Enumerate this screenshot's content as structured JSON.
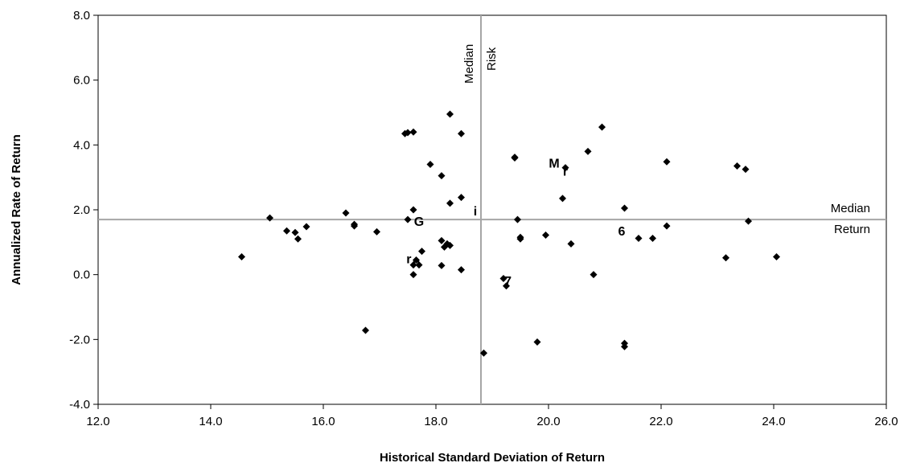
{
  "chart_data": {
    "type": "scatter",
    "title": "",
    "xlabel": "Historical Standard Deviation of Return",
    "ylabel": "Annualized Rate of Return",
    "xlim": [
      12.0,
      26.0
    ],
    "ylim": [
      -4.0,
      8.0
    ],
    "x_ticks": [
      "12.0",
      "14.0",
      "16.0",
      "18.0",
      "20.0",
      "22.0",
      "24.0",
      "26.0"
    ],
    "y_ticks": [
      "-4.0",
      "-2.0",
      "0.0",
      "2.0",
      "4.0",
      "6.0",
      "8.0"
    ],
    "grid": false,
    "marker": "diamond",
    "marker_color": "#000000",
    "reference_line_color": "#a6a6a6",
    "reference_lines": {
      "median_risk": {
        "value": 18.8,
        "label_line1": "Median",
        "label_line2": "Risk"
      },
      "median_return": {
        "value": 1.7,
        "label_line1": "Median",
        "label_line2": "Return"
      }
    },
    "points": [
      {
        "x": 14.55,
        "y": 0.55
      },
      {
        "x": 15.05,
        "y": 1.75
      },
      {
        "x": 15.35,
        "y": 1.35
      },
      {
        "x": 15.5,
        "y": 1.3
      },
      {
        "x": 15.55,
        "y": 1.1
      },
      {
        "x": 15.7,
        "y": 1.48
      },
      {
        "x": 16.4,
        "y": 1.9
      },
      {
        "x": 16.55,
        "y": 1.5
      },
      {
        "x": 16.55,
        "y": 1.55
      },
      {
        "x": 16.75,
        "y": -1.72
      },
      {
        "x": 16.95,
        "y": 1.32
      },
      {
        "x": 17.45,
        "y": 4.35
      },
      {
        "x": 17.5,
        "y": 4.38
      },
      {
        "x": 17.6,
        "y": 4.4
      },
      {
        "x": 17.5,
        "y": 1.7
      },
      {
        "x": 17.6,
        "y": 2.0
      },
      {
        "x": 17.6,
        "y": 0.0
      },
      {
        "x": 17.65,
        "y": 0.45
      },
      {
        "x": 17.6,
        "y": 0.3
      },
      {
        "x": 17.7,
        "y": 0.3
      },
      {
        "x": 17.75,
        "y": 0.72
      },
      {
        "x": 17.9,
        "y": 3.4
      },
      {
        "x": 18.1,
        "y": 3.05
      },
      {
        "x": 18.1,
        "y": 1.05
      },
      {
        "x": 18.15,
        "y": 0.85
      },
      {
        "x": 18.2,
        "y": 0.95
      },
      {
        "x": 18.25,
        "y": 0.9
      },
      {
        "x": 18.1,
        "y": 0.28
      },
      {
        "x": 18.25,
        "y": 4.95
      },
      {
        "x": 18.25,
        "y": 2.2
      },
      {
        "x": 18.45,
        "y": 4.35
      },
      {
        "x": 18.45,
        "y": 2.38
      },
      {
        "x": 18.45,
        "y": 0.15
      },
      {
        "x": 18.85,
        "y": -2.42
      },
      {
        "x": 19.2,
        "y": -0.12
      },
      {
        "x": 19.25,
        "y": -0.35
      },
      {
        "x": 19.4,
        "y": 3.6
      },
      {
        "x": 19.4,
        "y": 3.62
      },
      {
        "x": 19.45,
        "y": 1.7
      },
      {
        "x": 19.5,
        "y": 1.15
      },
      {
        "x": 19.5,
        "y": 1.1
      },
      {
        "x": 19.8,
        "y": -2.08
      },
      {
        "x": 19.95,
        "y": 1.22
      },
      {
        "x": 20.25,
        "y": 2.35
      },
      {
        "x": 20.3,
        "y": 3.3
      },
      {
        "x": 20.4,
        "y": 0.95
      },
      {
        "x": 20.7,
        "y": 3.8
      },
      {
        "x": 20.8,
        "y": 0.0
      },
      {
        "x": 20.95,
        "y": 4.55
      },
      {
        "x": 21.35,
        "y": 2.05
      },
      {
        "x": 21.35,
        "y": -2.12
      },
      {
        "x": 21.35,
        "y": -2.22
      },
      {
        "x": 21.6,
        "y": 1.12
      },
      {
        "x": 21.85,
        "y": 1.12
      },
      {
        "x": 22.1,
        "y": 3.48
      },
      {
        "x": 22.1,
        "y": 1.5
      },
      {
        "x": 23.15,
        "y": 0.52
      },
      {
        "x": 23.35,
        "y": 3.35
      },
      {
        "x": 23.5,
        "y": 3.25
      },
      {
        "x": 23.55,
        "y": 1.65
      },
      {
        "x": 24.05,
        "y": 0.55
      }
    ],
    "annotations": [
      {
        "text": "M",
        "x": 20.1,
        "y": 3.45
      },
      {
        "text": "r",
        "x": 20.3,
        "y": 3.2
      },
      {
        "text": "i",
        "x": 18.7,
        "y": 1.98
      },
      {
        "text": "G",
        "x": 17.7,
        "y": 1.65
      },
      {
        "text": "6",
        "x": 21.3,
        "y": 1.36
      },
      {
        "text": "r",
        "x": 17.52,
        "y": 0.5
      },
      {
        "text": "e",
        "x": 17.65,
        "y": 0.42
      },
      {
        "text": "7",
        "x": 19.28,
        "y": -0.18
      }
    ]
  }
}
